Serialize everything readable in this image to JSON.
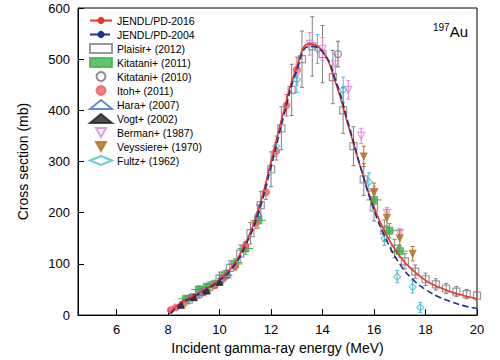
{
  "chart_data": {
    "type": "scatter",
    "x_label": "Incident gamma-ray energy (MeV)",
    "y_label": "Cross section (mb)",
    "annotation": {
      "sup": "197",
      "text": "Au"
    },
    "xlim": [
      4.5,
      20
    ],
    "xticks": [
      6,
      8,
      10,
      12,
      14,
      16,
      18,
      20
    ],
    "ylim": [
      0,
      600
    ],
    "yticks": [
      0,
      100,
      200,
      300,
      400,
      500,
      600
    ],
    "grid": false,
    "legend": "upper left",
    "series": [
      {
        "name": "JENDL/PD-2016",
        "type": "line",
        "color": "#e8362a",
        "line_style": "solid",
        "x": [
          8.05,
          8.5,
          9.0,
          9.5,
          10.0,
          10.5,
          11.0,
          11.5,
          12.0,
          12.5,
          13.0,
          13.5,
          14.0,
          14.5,
          15.0,
          15.5,
          16.0,
          16.5,
          17.0,
          17.5,
          18.0,
          18.5,
          19.0,
          19.5,
          20.0
        ],
        "values": [
          3,
          25,
          38,
          52,
          70,
          95,
          140,
          205,
          300,
          400,
          485,
          530,
          515,
          455,
          370,
          285,
          210,
          155,
          115,
          88,
          68,
          55,
          45,
          38,
          32
        ]
      },
      {
        "name": "JENDL/PD-2004",
        "type": "line",
        "color": "#1f2f8f",
        "line_style": "dashed",
        "x": [
          8.1,
          8.5,
          9.0,
          9.5,
          10.0,
          10.5,
          11.0,
          11.5,
          12.0,
          12.5,
          13.0,
          13.5,
          14.0,
          14.5,
          15.0,
          15.5,
          16.0,
          16.5,
          17.0,
          17.5,
          18.0,
          18.5,
          19.0,
          19.5,
          20.0
        ],
        "values": [
          3,
          22,
          36,
          50,
          68,
          92,
          135,
          198,
          290,
          390,
          478,
          525,
          515,
          460,
          375,
          285,
          205,
          145,
          100,
          70,
          50,
          36,
          26,
          18,
          13
        ]
      },
      {
        "name": "Plaisir+ (2012)",
        "type": "scatter",
        "color": "#808080",
        "marker": "square_open",
        "x": [
          8.8,
          9.2,
          9.6,
          10.0,
          10.4,
          10.8,
          11.2,
          11.6,
          12.0,
          12.4,
          12.8,
          13.2,
          13.6,
          14.0,
          14.4,
          14.8,
          15.2,
          15.6,
          16.0,
          16.4,
          16.8,
          17.2,
          17.6,
          18.0,
          18.4,
          18.8,
          19.2,
          19.6,
          20.0
        ],
        "values": [
          30,
          42,
          55,
          72,
          92,
          120,
          160,
          215,
          285,
          365,
          440,
          500,
          525,
          510,
          465,
          400,
          330,
          265,
          210,
          165,
          130,
          105,
          85,
          70,
          60,
          52,
          46,
          41,
          38
        ],
        "yerr": [
          8,
          9,
          10,
          12,
          14,
          17,
          21,
          27,
          34,
          42,
          50,
          55,
          58,
          56,
          52,
          45,
          38,
          31,
          26,
          21,
          18,
          15,
          13,
          12,
          11,
          10,
          10,
          9,
          9
        ]
      },
      {
        "name": "Kitatani+ (2011)",
        "type": "scatter",
        "color": "#3cb44b",
        "marker": "square",
        "x": [
          8.7,
          9.2,
          9.5,
          9.8,
          10.2,
          10.6,
          11.0,
          11.5,
          16.0,
          16.6,
          17.0
        ],
        "values": [
          32,
          50,
          55,
          60,
          78,
          100,
          130,
          185,
          225,
          165,
          125
        ],
        "xerr": [
          0.3,
          0.3,
          0.3,
          0.3,
          0.3,
          0.3,
          0.3,
          0.3,
          0.3,
          0.3,
          0.3
        ],
        "yerr": [
          6,
          7,
          7,
          8,
          9,
          10,
          12,
          15,
          18,
          14,
          12
        ]
      },
      {
        "name": "Kitatani+ (2010)",
        "type": "scatter",
        "color": "#707070",
        "marker": "circle_open",
        "x": [
          8.9,
          10.1,
          14.6
        ],
        "values": [
          35,
          70,
          510
        ],
        "yerr": [
          5,
          7,
          25
        ]
      },
      {
        "name": "Itoh+ (2011)",
        "type": "scatter",
        "color": "#f06060",
        "marker": "circle",
        "x": [
          8.1,
          8.3,
          8.6,
          9.0,
          9.4,
          9.8,
          10.2,
          10.6,
          11.0,
          11.4,
          11.8,
          12.2,
          12.6,
          13.0
        ],
        "values": [
          10,
          15,
          22,
          35,
          45,
          58,
          75,
          95,
          135,
          180,
          240,
          320,
          410,
          480
        ],
        "yerr": [
          3,
          3,
          4,
          4,
          4,
          5,
          6,
          7,
          9,
          11,
          14,
          17,
          21,
          24
        ]
      },
      {
        "name": "Hara+ (2007)",
        "type": "scatter",
        "color": "#3a6fc8",
        "marker": "triangle_open",
        "x": [
          9.3,
          10.3,
          11.5
        ],
        "values": [
          45,
          80,
          200
        ],
        "yerr": [
          5,
          8,
          15
        ]
      },
      {
        "name": "Vogt+ (2002)",
        "type": "scatter",
        "color": "#222222",
        "marker": "triangle",
        "x": [
          8.5,
          9.0,
          9.5,
          10.0
        ],
        "values": [
          20,
          35,
          48,
          65
        ],
        "yerr": [
          4,
          5,
          5,
          6
        ]
      },
      {
        "name": "Berman+ (1987)",
        "type": "scatter",
        "color": "#e080e0",
        "marker": "triangle_down_open",
        "x": [
          13.0,
          13.5,
          14.0,
          14.5,
          15.0,
          15.5,
          16.0,
          16.5,
          17.0
        ],
        "values": [
          470,
          530,
          520,
          490,
          440,
          350,
          240,
          200,
          160
        ],
        "yerr": [
          20,
          22,
          22,
          20,
          18,
          15,
          12,
          10,
          9
        ]
      },
      {
        "name": "Veyssiere+ (1970)",
        "type": "scatter",
        "color": "#b07020",
        "marker": "triangle_down",
        "x": [
          15.6,
          16.0,
          16.5,
          17.0,
          17.5
        ],
        "values": [
          310,
          240,
          190,
          150,
          120
        ],
        "yerr": [
          20,
          18,
          16,
          15,
          14
        ]
      },
      {
        "name": "Fultz+ (1962)",
        "type": "scatter",
        "color": "#40c0d0",
        "marker": "diamond_open",
        "x": [
          12.2,
          13.0,
          13.8,
          14.8,
          15.8,
          16.4,
          16.9,
          17.5,
          17.8
        ],
        "values": [
          330,
          460,
          520,
          440,
          260,
          150,
          75,
          55,
          15
        ],
        "yerr": [
          20,
          25,
          28,
          25,
          18,
          14,
          12,
          12,
          10
        ]
      }
    ]
  }
}
